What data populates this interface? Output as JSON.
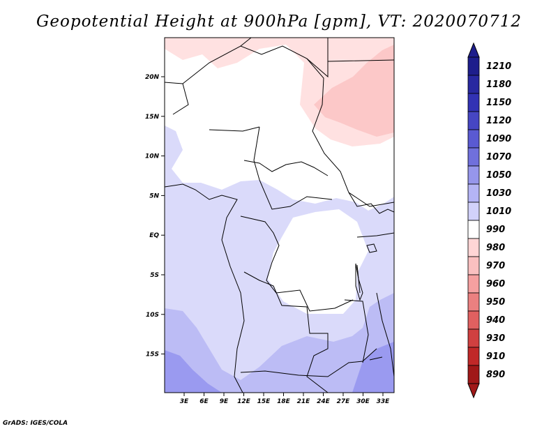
{
  "title": "Geopotential Height at 900hPa [gpm], VT: 2020070712",
  "footer": "GrADS: IGES/COLA",
  "lat_ticks": [
    "20N",
    "15N",
    "10N",
    "5N",
    "EQ",
    "5S",
    "10S",
    "15S"
  ],
  "lon_ticks": [
    "3E",
    "6E",
    "9E",
    "12E",
    "15E",
    "18E",
    "21E",
    "24E",
    "27E",
    "30E",
    "33E"
  ],
  "colorbar": {
    "labels": [
      "1210",
      "1180",
      "1150",
      "1120",
      "1090",
      "1070",
      "1050",
      "1030",
      "1010",
      "990",
      "980",
      "970",
      "960",
      "950",
      "940",
      "930",
      "910",
      "890"
    ],
    "colors": [
      "#1e1e8c",
      "#2828a0",
      "#3232b4",
      "#4646c3",
      "#5a5ad2",
      "#7070dc",
      "#9696eb",
      "#b4b4f5",
      "#d2d2fa",
      "#ffffff",
      "#ffd6d6",
      "#fac0c0",
      "#f5a0a0",
      "#eb8080",
      "#e06060",
      "#d04040",
      "#c02828",
      "#a01818"
    ]
  },
  "fields": {
    "colors": {
      "h990": "#ffffff",
      "h1010": "#dadafa",
      "h1030": "#bcbcf5",
      "h1050": "#9a9af0",
      "h980": "#ffe1e1",
      "h970": "#fcc8c8"
    }
  }
}
